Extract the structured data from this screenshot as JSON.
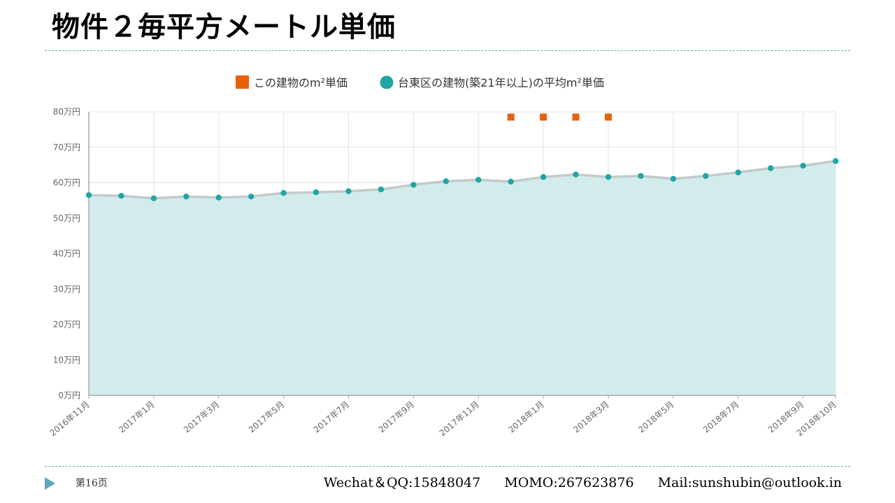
{
  "title": "物件２毎平方メートル単価",
  "footer": {
    "page": "第16页",
    "wechat": "Wechat＆QQ:15848047",
    "momo": "MOMO:267623876",
    "mail": "Mail:sunshubin@outlook.in"
  },
  "colors": {
    "building_series": "#e8610a",
    "area_series": "#1fa5a5",
    "area_fill": "#d2ecec",
    "area_line": "#c4c9c9"
  },
  "chart_data": {
    "type": "line",
    "legend": {
      "placement": "top-center",
      "entries": [
        "この建物のm²単価",
        "台東区の建物(築21年以上)の平均m²単価"
      ]
    },
    "ylim": [
      0,
      80
    ],
    "yticks": [
      0,
      10,
      20,
      30,
      40,
      50,
      60,
      70,
      80
    ],
    "ytick_labels": [
      "0万円",
      "10万円",
      "20万円",
      "30万円",
      "40万円",
      "50万円",
      "60万円",
      "70万円",
      "80万円"
    ],
    "grid": true,
    "x": [
      "2016年11月",
      "2016年12月",
      "2017年1月",
      "2017年2月",
      "2017年3月",
      "2017年4月",
      "2017年5月",
      "2017年6月",
      "2017年7月",
      "2017年8月",
      "2017年9月",
      "2017年10月",
      "2017年11月",
      "2017年12月",
      "2018年1月",
      "2018年2月",
      "2018年3月",
      "2018年4月",
      "2018年5月",
      "2018年6月",
      "2018年7月",
      "2018年8月",
      "2018年9月",
      "2018年10月"
    ],
    "xtick_labels": [
      "2016年11月",
      "2017年1月",
      "2017年3月",
      "2017年5月",
      "2017年7月",
      "2017年9月",
      "2017年11月",
      "2018年1月",
      "2018年3月",
      "2018年5月",
      "2018年7月",
      "2018年9月",
      "2018年10月"
    ],
    "series": [
      {
        "name": "この建物のm²単価",
        "style": "square-marker",
        "values": [
          null,
          null,
          null,
          null,
          null,
          null,
          null,
          null,
          null,
          null,
          null,
          null,
          null,
          78.5,
          78.5,
          78.5,
          78.5,
          null,
          null,
          null,
          null,
          null,
          null,
          null
        ]
      },
      {
        "name": "台東区の建物(築21年以上)の平均m²単価",
        "style": "area-line",
        "values": [
          56.5,
          56.3,
          55.6,
          56.1,
          55.8,
          56.1,
          57.1,
          57.3,
          57.6,
          58.1,
          59.4,
          60.4,
          60.8,
          60.3,
          61.6,
          62.3,
          61.6,
          61.9,
          61.1,
          61.9,
          62.9,
          64.1,
          64.8,
          66.1
        ]
      }
    ]
  }
}
